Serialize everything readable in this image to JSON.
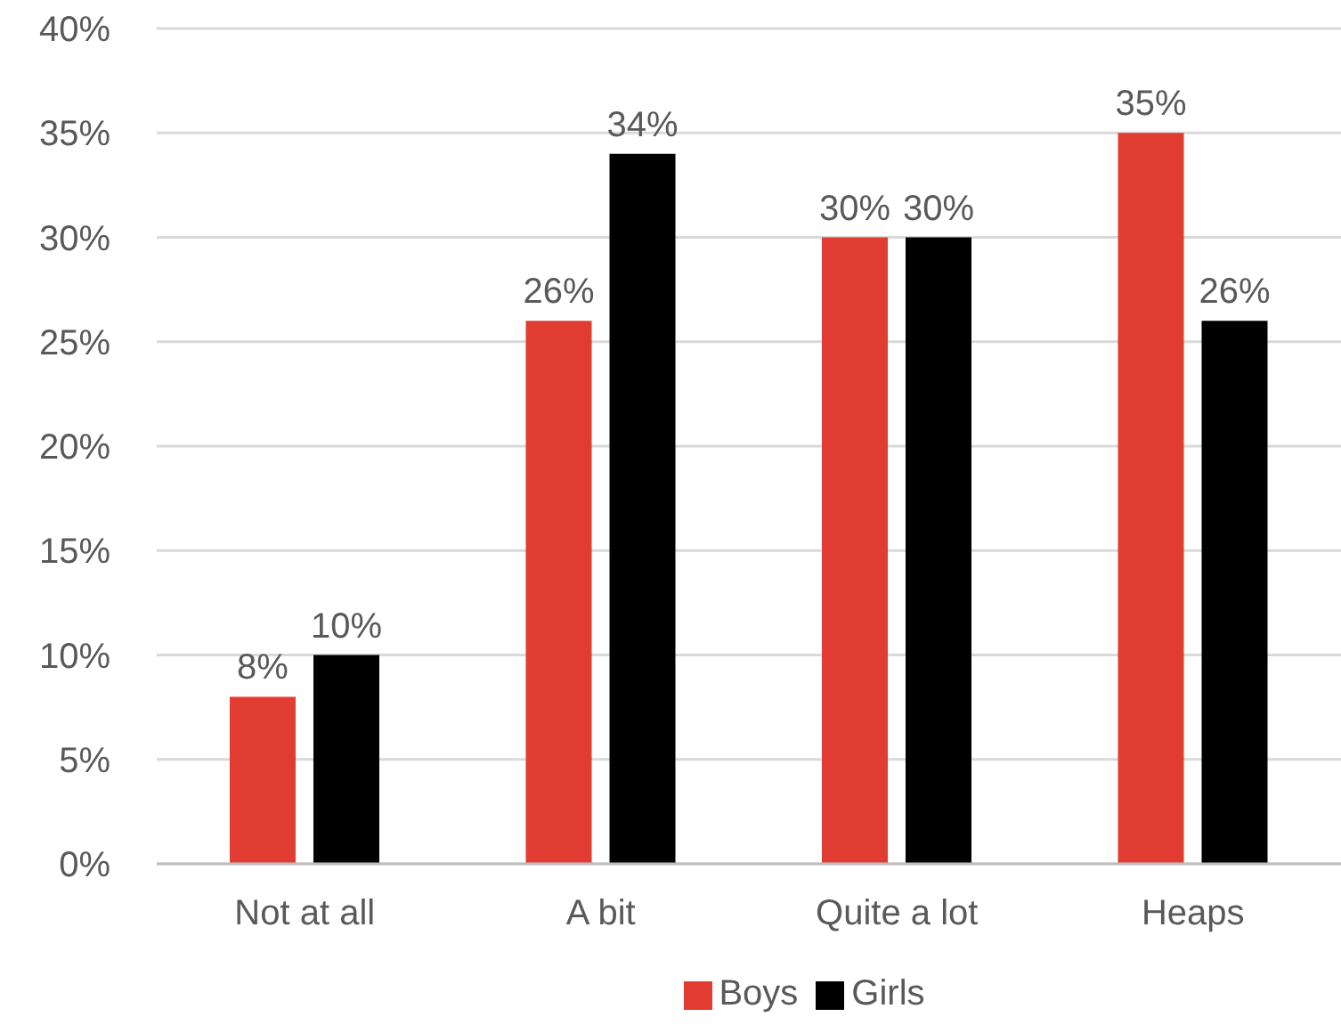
{
  "chart_data": {
    "type": "bar",
    "categories": [
      "Not at all",
      "A bit",
      "Quite a lot",
      "Heaps"
    ],
    "series": [
      {
        "name": "Boys",
        "color": "#e03c31",
        "values": [
          8,
          26,
          30,
          35
        ],
        "value_labels": [
          "8%",
          "26%",
          "30%",
          "35%"
        ]
      },
      {
        "name": "Girls",
        "color": "#000000",
        "values": [
          10,
          34,
          30,
          26
        ],
        "value_labels": [
          "10%",
          "34%",
          "30%",
          "26%"
        ]
      }
    ],
    "ylim": [
      0,
      40
    ],
    "yticks": [
      {
        "value": 0,
        "label": "0%"
      },
      {
        "value": 5,
        "label": "5%"
      },
      {
        "value": 10,
        "label": "10%"
      },
      {
        "value": 15,
        "label": "15%"
      },
      {
        "value": 20,
        "label": "20%"
      },
      {
        "value": 25,
        "label": "25%"
      },
      {
        "value": 30,
        "label": "30%"
      },
      {
        "value": 35,
        "label": "35%"
      },
      {
        "value": 40,
        "label": "40%"
      }
    ],
    "grid": "y",
    "legend": "bottom"
  }
}
